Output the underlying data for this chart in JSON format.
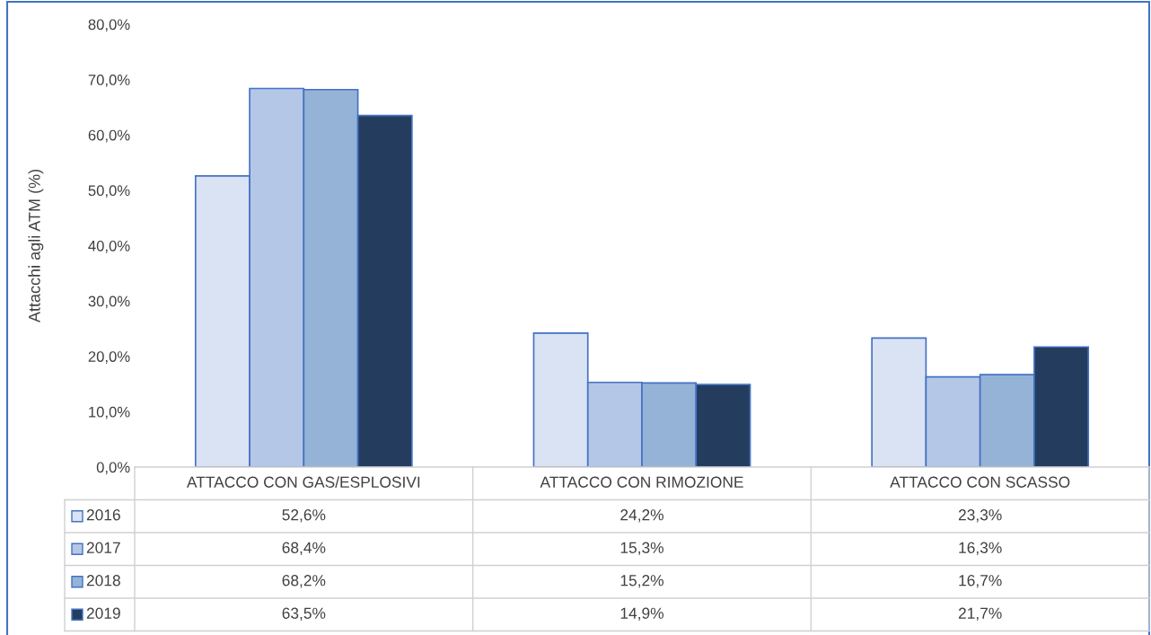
{
  "chart_data": {
    "type": "bar",
    "ylabel": "Attacchi agli ATM (%)",
    "categories": [
      "ATTACCO CON GAS/ESPLOSIVI",
      "ATTACCO CON RIMOZIONE",
      "ATTACCO CON SCASSO"
    ],
    "series": [
      {
        "name": "2016",
        "color": "#dae3f3",
        "values": [
          52.6,
          24.2,
          23.3
        ],
        "value_labels": [
          "52,6%",
          "24,2%",
          "23,3%"
        ]
      },
      {
        "name": "2017",
        "color": "#b4c7e7",
        "values": [
          68.4,
          15.3,
          16.3
        ],
        "value_labels": [
          "68,4%",
          "15,3%",
          "16,3%"
        ]
      },
      {
        "name": "2018",
        "color": "#95b3d7",
        "values": [
          68.2,
          15.2,
          16.7
        ],
        "value_labels": [
          "68,2%",
          "15,2%",
          "16,7%"
        ]
      },
      {
        "name": "2019",
        "color": "#243d5e",
        "values": [
          63.5,
          14.9,
          21.7
        ],
        "value_labels": [
          "63,5%",
          "14,9%",
          "21,7%"
        ]
      }
    ],
    "ylim": [
      0,
      80
    ],
    "yticks": [
      {
        "value": 0,
        "label": "0,0%"
      },
      {
        "value": 10,
        "label": "10,0%"
      },
      {
        "value": 20,
        "label": "20,0%"
      },
      {
        "value": 30,
        "label": "30,0%"
      },
      {
        "value": 40,
        "label": "40,0%"
      },
      {
        "value": 50,
        "label": "50,0%"
      },
      {
        "value": 60,
        "label": "60,0%"
      },
      {
        "value": 70,
        "label": "70,0%"
      },
      {
        "value": 80,
        "label": "80,0%"
      }
    ],
    "grid": false,
    "legend": "bottom"
  }
}
